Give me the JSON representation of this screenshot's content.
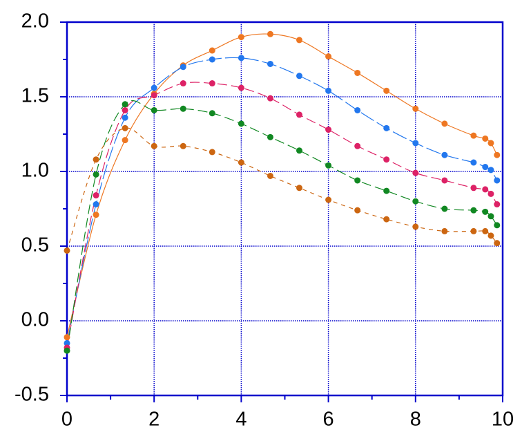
{
  "chart_data": {
    "type": "line",
    "x": [
      0,
      0.667,
      1.333,
      2,
      2.667,
      3.333,
      4,
      4.667,
      5.333,
      6,
      6.667,
      7.333,
      8,
      8.667,
      9.333,
      9.6,
      9.73,
      9.87
    ],
    "series": [
      {
        "color": "#ee7722",
        "linestyle": "solid",
        "values": [
          -0.11,
          0.71,
          1.21,
          1.52,
          1.71,
          1.81,
          1.9,
          1.92,
          1.88,
          1.77,
          1.66,
          1.54,
          1.42,
          1.32,
          1.24,
          1.22,
          1.19,
          1.11
        ]
      },
      {
        "color": "#2277ee",
        "linestyle": "longdash",
        "values": [
          -0.15,
          0.78,
          1.36,
          1.56,
          1.7,
          1.75,
          1.76,
          1.72,
          1.64,
          1.54,
          1.41,
          1.29,
          1.19,
          1.11,
          1.06,
          1.03,
          1.01,
          0.94
        ]
      },
      {
        "color": "#dd2266",
        "linestyle": "dashed",
        "values": [
          -0.18,
          0.84,
          1.41,
          1.51,
          1.59,
          1.59,
          1.56,
          1.49,
          1.38,
          1.28,
          1.17,
          1.08,
          0.99,
          0.94,
          0.89,
          0.88,
          0.85,
          0.78
        ]
      },
      {
        "color": "#118822",
        "linestyle": "dashed",
        "values": [
          -0.2,
          0.98,
          1.45,
          1.41,
          1.42,
          1.39,
          1.32,
          1.23,
          1.14,
          1.04,
          0.94,
          0.87,
          0.8,
          0.75,
          0.74,
          0.73,
          0.7,
          0.64
        ]
      },
      {
        "color": "#cc6611",
        "linestyle": "shortdash",
        "values": [
          0.47,
          1.08,
          1.29,
          1.17,
          1.17,
          1.13,
          1.06,
          0.97,
          0.89,
          0.81,
          0.74,
          0.68,
          0.63,
          0.6,
          0.6,
          0.6,
          0.57,
          0.52
        ]
      }
    ],
    "xlim": [
      0,
      10
    ],
    "xticks": [
      0,
      2,
      4,
      6,
      8,
      10
    ],
    "ylim": [
      -0.5,
      2.0
    ],
    "yticks": [
      {
        "value": -0.5,
        "label": "-0.5"
      },
      {
        "value": 0,
        "label": "0.0"
      },
      0.5,
      {
        "value": 1,
        "label": "1.0"
      },
      1.5,
      {
        "value": 2,
        "label": "2.0"
      }
    ],
    "grid": true
  }
}
